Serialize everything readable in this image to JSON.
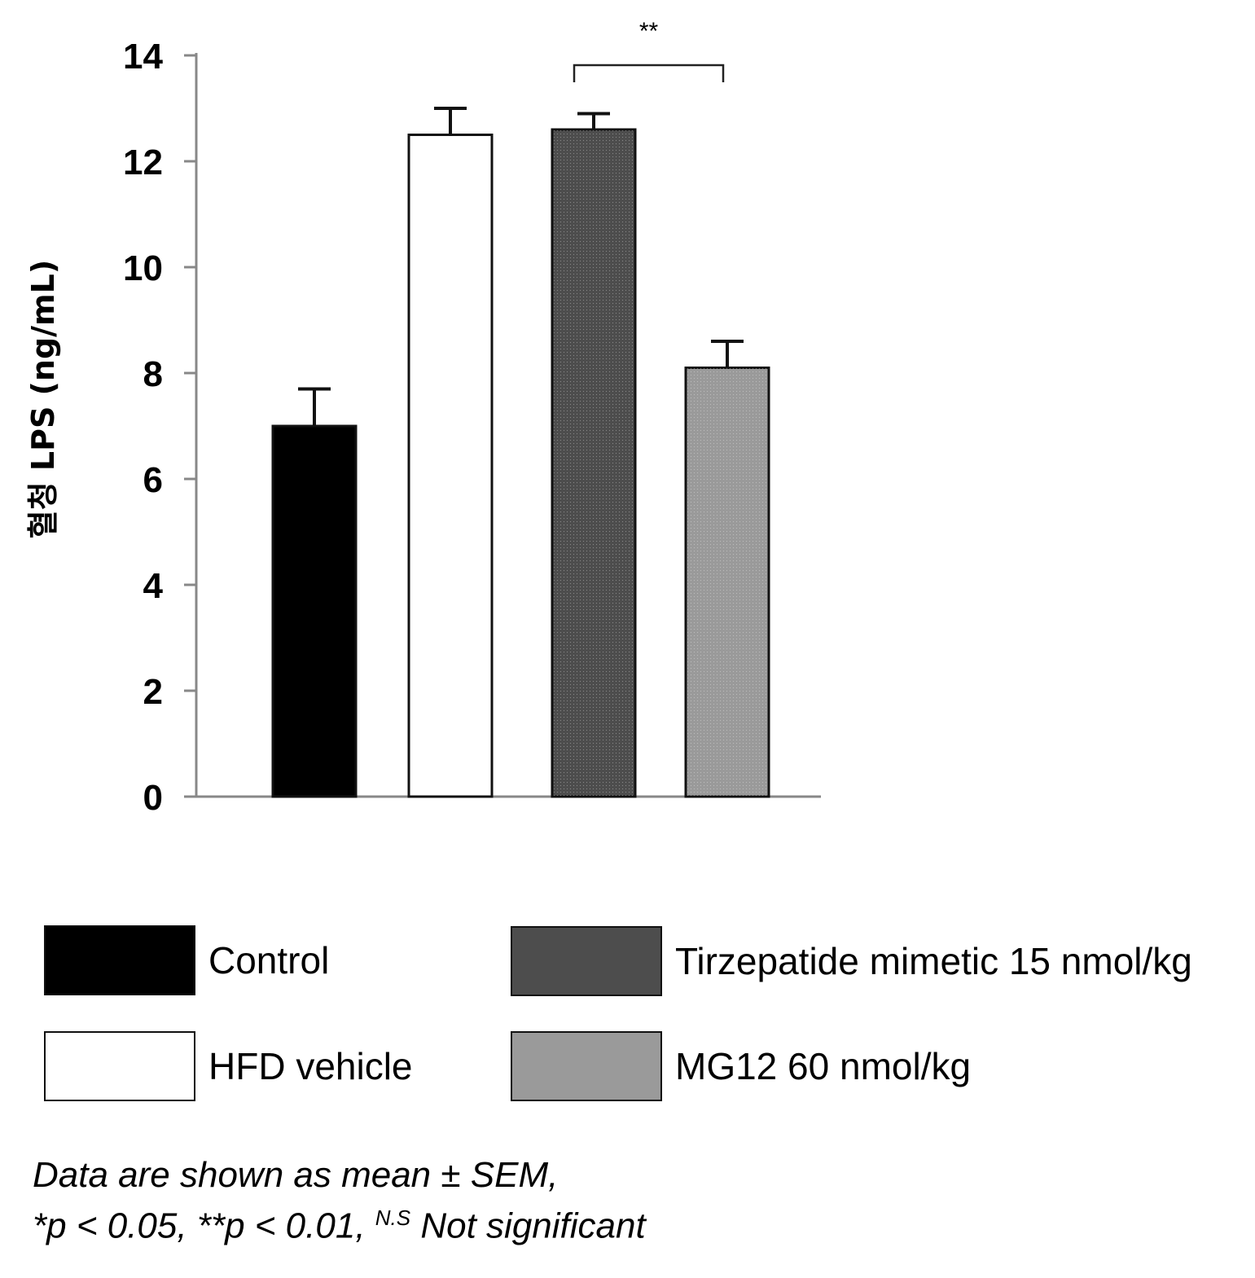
{
  "chart_data": {
    "type": "bar",
    "title": "",
    "xlabel": "",
    "ylabel": "혈청 LPS (ng/mL)",
    "ylim": [
      0,
      14
    ],
    "yticks": [
      "0",
      "2",
      "4",
      "6",
      "8",
      "10",
      "12",
      "14"
    ],
    "categories": [
      "Control",
      "HFD vehicle",
      "Tirzepatide mimetic 15 nmol/kg",
      "MG12 60 nmol/kg"
    ],
    "values": [
      7.0,
      12.5,
      12.6,
      8.1
    ],
    "errors": [
      0.7,
      0.5,
      0.3,
      0.5
    ],
    "colors": [
      "#000000",
      "#ffffff",
      "#4d4d4d",
      "#9a9a9a"
    ],
    "significance": [
      {
        "from": 2,
        "to": 3,
        "label": "**"
      }
    ],
    "grid": false,
    "legend_position": "bottom"
  },
  "footnote": {
    "line1": "Data are shown as mean ± SEM,",
    "line2_a": "*p < 0.05, **p < 0.01, ",
    "line2_sup": "N.S",
    "line2_b": " Not significant"
  }
}
